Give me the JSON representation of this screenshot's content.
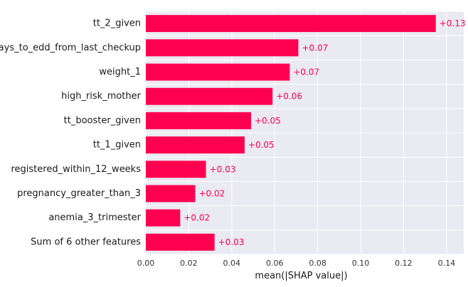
{
  "chart_data": {
    "type": "bar",
    "orientation": "horizontal",
    "categories": [
      "tt_2_given",
      "days_to_edd_from_last_checkup",
      "weight_1",
      "high_risk_mother",
      "tt_booster_given",
      "tt_1_given",
      "registered_within_12_weeks",
      "pregnancy_greater_than_3",
      "anemia_3_trimester",
      "Sum of 6 other features"
    ],
    "values": [
      0.135,
      0.071,
      0.067,
      0.059,
      0.049,
      0.046,
      0.028,
      0.023,
      0.016,
      0.032
    ],
    "data_labels": [
      "+0.13",
      "+0.07",
      "+0.07",
      "+0.06",
      "+0.05",
      "+0.05",
      "+0.03",
      "+0.02",
      "+0.02",
      "+0.03"
    ],
    "xlabel": "mean(|SHAP value|)",
    "ylabel": "",
    "title": "",
    "xlim": [
      0,
      0.148
    ],
    "xticks": [
      0,
      0.02,
      0.04,
      0.06,
      0.08,
      0.1,
      0.12,
      0.14
    ],
    "xtick_labels": [
      "0.00",
      "0.02",
      "0.04",
      "0.06",
      "0.08",
      "0.10",
      "0.12",
      "0.14"
    ],
    "grid": true,
    "colors": {
      "bar": "#ff0051",
      "label": "#ff0051",
      "plot_background": "#eaeaf2",
      "grid": "#ffffff"
    }
  }
}
